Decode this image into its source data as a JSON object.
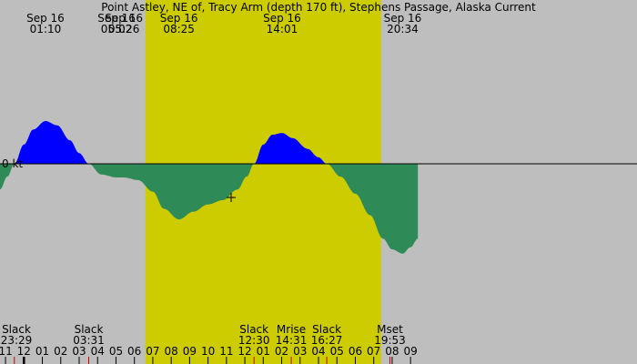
{
  "title": "Point Astley, NE of, Tracy Arm (depth 170 ft), Stephens Passage, Alaska Current",
  "colors": {
    "night": "#bebebe",
    "day": "#cccc00",
    "flood": "#0000ff",
    "ebb": "#2e8b57",
    "text": "#000000",
    "tick_event": "#cc0000"
  },
  "chart_data": {
    "type": "area",
    "title": "Point Astley, NE of, Tracy Arm (depth 170 ft), Stephens Passage, Alaska Current",
    "xlabel": "",
    "ylabel": "",
    "zero_label": "0 kt",
    "x_range_hours": [
      -1.3,
      33.3
    ],
    "y_range": [
      -2.1,
      1.2
    ],
    "daylight": {
      "start": 6.6,
      "end": 19.4
    },
    "extrema_labels": [
      {
        "date": "Sep 16",
        "time": "01:10",
        "hour": 1.17
      },
      {
        "date": "Sep 16",
        "time": "05:02",
        "hour": 5.03
      },
      {
        "date": "Sep 16",
        "time": "05:26",
        "hour": 5.43
      },
      {
        "date": "Sep 16",
        "time": "08:25",
        "hour": 8.42
      },
      {
        "date": "Sep 16",
        "time": "14:01",
        "hour": 14.02
      },
      {
        "date": "Sep 16",
        "time": "20:34",
        "hour": 20.57
      }
    ],
    "events": [
      {
        "name": "Slack",
        "time": "23:29",
        "hour": -0.52
      },
      {
        "name": "Slack",
        "time": "03:31",
        "hour": 3.52
      },
      {
        "name": "Slack",
        "time": "12:30",
        "hour": 12.5
      },
      {
        "name": "Mrise",
        "time": "14:31",
        "hour": 14.52
      },
      {
        "name": "Slack",
        "time": "16:27",
        "hour": 16.45
      },
      {
        "name": "Mset",
        "time": "19:53",
        "hour": 19.88
      }
    ],
    "x_tick_labels": [
      {
        "label": "11",
        "hour": -1
      },
      {
        "label": "12",
        "hour": 0
      },
      {
        "label": "01",
        "hour": 1
      },
      {
        "label": "02",
        "hour": 2
      },
      {
        "label": "03",
        "hour": 3
      },
      {
        "label": "04",
        "hour": 4
      },
      {
        "label": "05",
        "hour": 5
      },
      {
        "label": "06",
        "hour": 6
      },
      {
        "label": "07",
        "hour": 7
      },
      {
        "label": "08",
        "hour": 8
      },
      {
        "label": "09",
        "hour": 9
      },
      {
        "label": "10",
        "hour": 10
      },
      {
        "label": "11",
        "hour": 11
      },
      {
        "label": "12",
        "hour": 12
      },
      {
        "label": "01",
        "hour": 13
      },
      {
        "label": "02",
        "hour": 14
      },
      {
        "label": "03",
        "hour": 15
      },
      {
        "label": "04",
        "hour": 16
      },
      {
        "label": "05",
        "hour": 17
      },
      {
        "label": "06",
        "hour": 18
      },
      {
        "label": "07",
        "hour": 19
      },
      {
        "label": "08",
        "hour": 20
      },
      {
        "label": "09",
        "hour": 21
      }
    ],
    "series": [
      {
        "x": [
          -1.3,
          -0.9,
          -0.52,
          0,
          0.5,
          1.17,
          1.8,
          2.5,
          3.0,
          3.52,
          4.2,
          5.03,
          5.43,
          6.2,
          7.0,
          7.6,
          8.42,
          9.2,
          10.0,
          10.8,
          11.6,
          12.1,
          12.5,
          13.0,
          13.5,
          14.02,
          14.6,
          15.4,
          16.0,
          16.45,
          17.2,
          18.0,
          18.8,
          19.5,
          20.0,
          20.57,
          21.0,
          21.4
        ],
        "y": [
          -0.6,
          -0.3,
          0.0,
          0.45,
          0.8,
          1.0,
          0.9,
          0.55,
          0.25,
          0.0,
          -0.25,
          -0.32,
          -0.32,
          -0.38,
          -0.65,
          -1.05,
          -1.3,
          -1.12,
          -0.95,
          -0.85,
          -0.6,
          -0.3,
          0.0,
          0.45,
          0.68,
          0.72,
          0.6,
          0.35,
          0.15,
          0.0,
          -0.3,
          -0.7,
          -1.2,
          -1.75,
          -2.0,
          -2.1,
          -1.95,
          -1.75
        ]
      }
    ]
  }
}
